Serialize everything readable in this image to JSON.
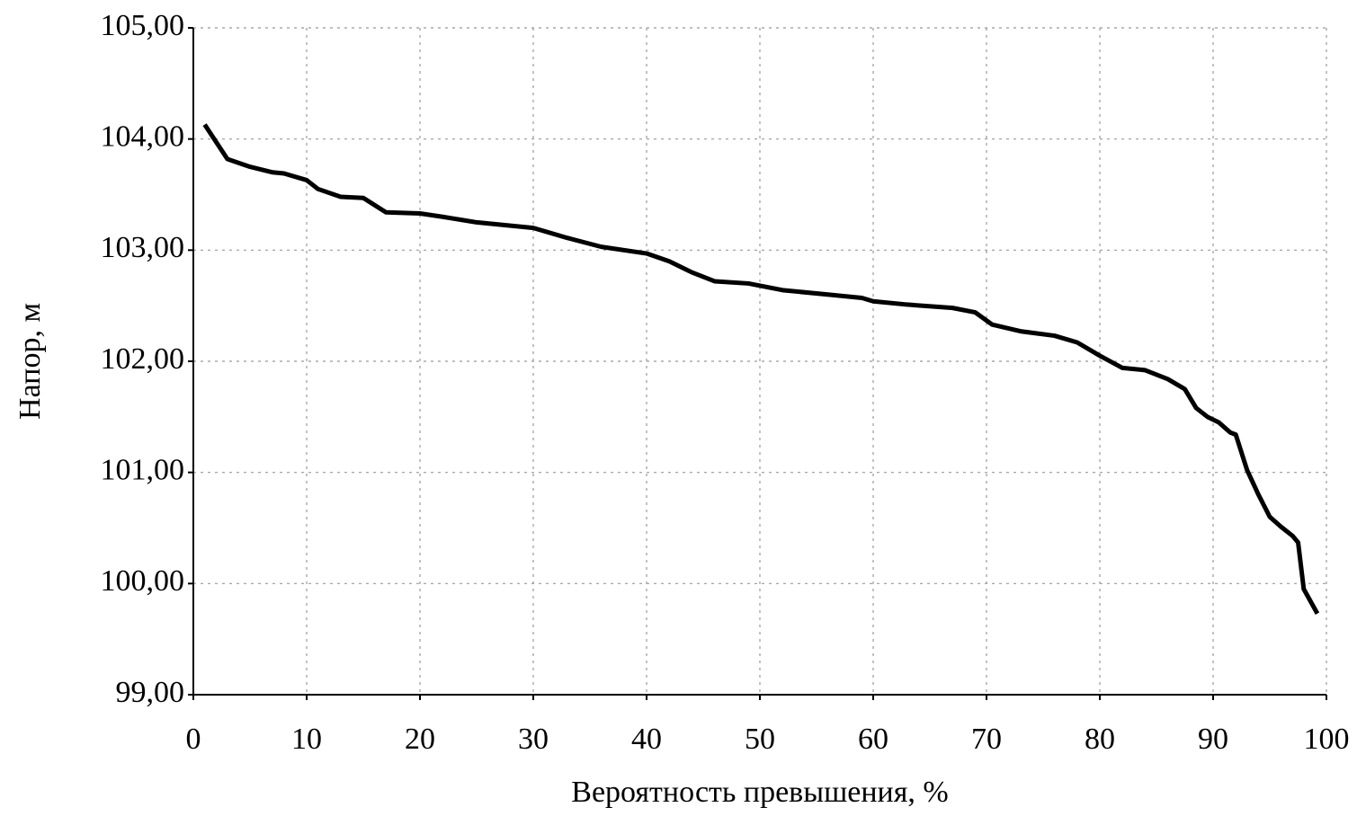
{
  "chart_data": {
    "type": "line",
    "x_label": "Вероятность превышения, %",
    "y_label": "Напор, м",
    "x": [
      1,
      3,
      5,
      7,
      8,
      10,
      11,
      13,
      15,
      17,
      20,
      22,
      25,
      28,
      30,
      33,
      36,
      40,
      42,
      44,
      46,
      49,
      52,
      56,
      59,
      60,
      63,
      67,
      69,
      70.5,
      73,
      76,
      78,
      80,
      82,
      84,
      86,
      87.5,
      88.5,
      89.5,
      90.5,
      91.5,
      92,
      93,
      94,
      95,
      96,
      97,
      97.5,
      98,
      99.2
    ],
    "series": [
      {
        "color": "#000000",
        "values": [
          104.13,
          103.82,
          103.75,
          103.7,
          103.69,
          103.63,
          103.55,
          103.48,
          103.47,
          103.34,
          103.33,
          103.3,
          103.25,
          103.22,
          103.2,
          103.11,
          103.03,
          102.97,
          102.9,
          102.8,
          102.72,
          102.7,
          102.64,
          102.6,
          102.57,
          102.54,
          102.51,
          102.48,
          102.44,
          102.33,
          102.27,
          102.23,
          102.17,
          102.05,
          101.94,
          101.92,
          101.84,
          101.75,
          101.58,
          101.5,
          101.45,
          101.36,
          101.34,
          101.02,
          100.8,
          100.6,
          100.51,
          100.43,
          100.37,
          99.95,
          99.73
        ]
      }
    ],
    "xlim": [
      0,
      100
    ],
    "xticks": [
      0,
      10,
      20,
      30,
      40,
      50,
      60,
      70,
      80,
      90,
      100
    ],
    "ylim": [
      99,
      105
    ],
    "yticks": [
      {
        "value": 99,
        "label": "99,00"
      },
      {
        "value": 100,
        "label": "100,00"
      },
      {
        "value": 101,
        "label": "101,00"
      },
      {
        "value": 102,
        "label": "102,00"
      },
      {
        "value": 103,
        "label": "103,00"
      },
      {
        "value": 104,
        "label": "104,00"
      },
      {
        "value": 105,
        "label": "105,00"
      }
    ],
    "grid": true
  }
}
